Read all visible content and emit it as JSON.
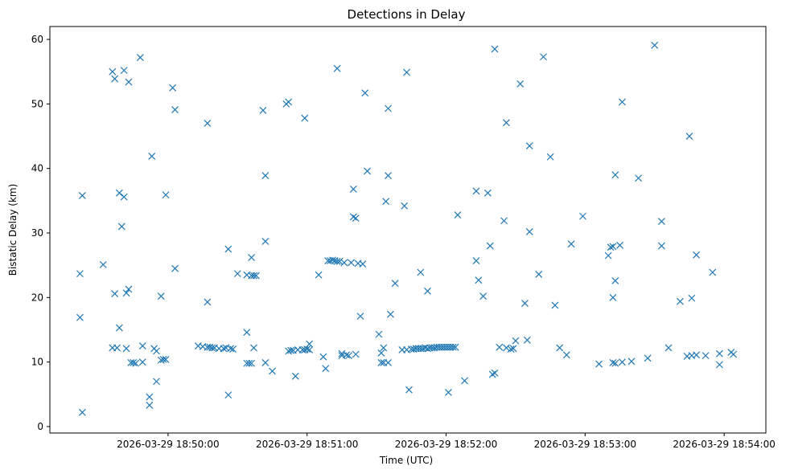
{
  "chart_data": {
    "type": "scatter",
    "title": "Detections in Delay",
    "xlabel": "Time (UTC)",
    "ylabel": "Bistatic Delay (km)",
    "x_is_time": true,
    "xlim": [
      "2026-03-29 18:49:09",
      "2026-03-29 18:54:18"
    ],
    "ylim": [
      -1,
      62
    ],
    "x_ticks": [
      "2026-03-29 18:50:00",
      "2026-03-29 18:51:00",
      "2026-03-29 18:52:00",
      "2026-03-29 18:53:00",
      "2026-03-29 18:54:00"
    ],
    "y_ticks": [
      0,
      10,
      20,
      30,
      40,
      50,
      60
    ],
    "marker": "x",
    "color": "#1f77b4",
    "grid": false,
    "points": [
      [
        "2026-03-29 18:49:22",
        23.7
      ],
      [
        "2026-03-29 18:49:22",
        16.9
      ],
      [
        "2026-03-29 18:49:23",
        35.8
      ],
      [
        "2026-03-29 18:49:23",
        2.2
      ],
      [
        "2026-03-29 18:49:32",
        25.1
      ],
      [
        "2026-03-29 18:49:36",
        55.0
      ],
      [
        "2026-03-29 18:49:37",
        53.9
      ],
      [
        "2026-03-29 18:49:37",
        20.6
      ],
      [
        "2026-03-29 18:49:36",
        12.2
      ],
      [
        "2026-03-29 18:49:38",
        12.2
      ],
      [
        "2026-03-29 18:49:39",
        36.2
      ],
      [
        "2026-03-29 18:49:39",
        15.3
      ],
      [
        "2026-03-29 18:49:40",
        31.0
      ],
      [
        "2026-03-29 18:49:41",
        35.6
      ],
      [
        "2026-03-29 18:49:41",
        55.2
      ],
      [
        "2026-03-29 18:49:42",
        20.7
      ],
      [
        "2026-03-29 18:49:42",
        12.1
      ],
      [
        "2026-03-29 18:49:43",
        53.4
      ],
      [
        "2026-03-29 18:49:43",
        21.3
      ],
      [
        "2026-03-29 18:49:44",
        9.9
      ],
      [
        "2026-03-29 18:49:45",
        9.9
      ],
      [
        "2026-03-29 18:49:46",
        9.8
      ],
      [
        "2026-03-29 18:49:48",
        57.2
      ],
      [
        "2026-03-29 18:49:49",
        12.5
      ],
      [
        "2026-03-29 18:49:49",
        10.0
      ],
      [
        "2026-03-29 18:49:52",
        4.6
      ],
      [
        "2026-03-29 18:49:52",
        3.3
      ],
      [
        "2026-03-29 18:49:53",
        41.9
      ],
      [
        "2026-03-29 18:49:54",
        12.1
      ],
      [
        "2026-03-29 18:49:55",
        11.7
      ],
      [
        "2026-03-29 18:49:55",
        7.0
      ],
      [
        "2026-03-29 18:49:57",
        20.2
      ],
      [
        "2026-03-29 18:49:57",
        10.3
      ],
      [
        "2026-03-29 18:49:58",
        10.4
      ],
      [
        "2026-03-29 18:49:59",
        10.4
      ],
      [
        "2026-03-29 18:49:59",
        35.9
      ],
      [
        "2026-03-29 18:50:02",
        52.5
      ],
      [
        "2026-03-29 18:50:03",
        49.1
      ],
      [
        "2026-03-29 18:50:03",
        24.5
      ],
      [
        "2026-03-29 18:50:13",
        12.5
      ],
      [
        "2026-03-29 18:50:15",
        12.4
      ],
      [
        "2026-03-29 18:50:17",
        47.0
      ],
      [
        "2026-03-29 18:50:17",
        19.3
      ],
      [
        "2026-03-29 18:50:17",
        12.3
      ],
      [
        "2026-03-29 18:50:18",
        12.3
      ],
      [
        "2026-03-29 18:50:19",
        12.2
      ],
      [
        "2026-03-29 18:50:20",
        12.2
      ],
      [
        "2026-03-29 18:50:22",
        12.1
      ],
      [
        "2026-03-29 18:50:24",
        12.1
      ],
      [
        "2026-03-29 18:50:25",
        12.2
      ],
      [
        "2026-03-29 18:50:26",
        27.5
      ],
      [
        "2026-03-29 18:50:26",
        4.9
      ],
      [
        "2026-03-29 18:50:27",
        12.1
      ],
      [
        "2026-03-29 18:50:28",
        12.0
      ],
      [
        "2026-03-29 18:50:30",
        23.7
      ],
      [
        "2026-03-29 18:50:34",
        23.5
      ],
      [
        "2026-03-29 18:50:34",
        14.6
      ],
      [
        "2026-03-29 18:50:34",
        9.8
      ],
      [
        "2026-03-29 18:50:35",
        9.8
      ],
      [
        "2026-03-29 18:50:36",
        9.8
      ],
      [
        "2026-03-29 18:50:36",
        23.4
      ],
      [
        "2026-03-29 18:50:36",
        26.2
      ],
      [
        "2026-03-29 18:50:37",
        12.2
      ],
      [
        "2026-03-29 18:50:37",
        23.4
      ],
      [
        "2026-03-29 18:50:38",
        23.4
      ],
      [
        "2026-03-29 18:50:41",
        49.0
      ],
      [
        "2026-03-29 18:50:42",
        38.9
      ],
      [
        "2026-03-29 18:50:42",
        28.7
      ],
      [
        "2026-03-29 18:50:42",
        9.9
      ],
      [
        "2026-03-29 18:50:45",
        8.6
      ],
      [
        "2026-03-29 18:50:51",
        50.0
      ],
      [
        "2026-03-29 18:50:52",
        50.3
      ],
      [
        "2026-03-29 18:50:52",
        11.7
      ],
      [
        "2026-03-29 18:50:53",
        11.8
      ],
      [
        "2026-03-29 18:50:54",
        11.8
      ],
      [
        "2026-03-29 18:50:55",
        7.8
      ],
      [
        "2026-03-29 18:50:56",
        11.9
      ],
      [
        "2026-03-29 18:50:58",
        11.9
      ],
      [
        "2026-03-29 18:50:59",
        47.8
      ],
      [
        "2026-03-29 18:50:59",
        11.9
      ],
      [
        "2026-03-29 18:51:00",
        12.0
      ],
      [
        "2026-03-29 18:51:01",
        11.9
      ],
      [
        "2026-03-29 18:51:01",
        12.8
      ],
      [
        "2026-03-29 18:51:05",
        23.5
      ],
      [
        "2026-03-29 18:51:07",
        10.8
      ],
      [
        "2026-03-29 18:51:08",
        9.0
      ],
      [
        "2026-03-29 18:51:09",
        25.7
      ],
      [
        "2026-03-29 18:51:10",
        25.7
      ],
      [
        "2026-03-29 18:51:11",
        25.8
      ],
      [
        "2026-03-29 18:51:12",
        25.7
      ],
      [
        "2026-03-29 18:51:13",
        55.5
      ],
      [
        "2026-03-29 18:51:13",
        25.6
      ],
      [
        "2026-03-29 18:51:14",
        25.6
      ],
      [
        "2026-03-29 18:51:15",
        11.0
      ],
      [
        "2026-03-29 18:51:15",
        11.3
      ],
      [
        "2026-03-29 18:51:16",
        25.4
      ],
      [
        "2026-03-29 18:51:17",
        11.1
      ],
      [
        "2026-03-29 18:51:18",
        11.0
      ],
      [
        "2026-03-29 18:51:19",
        25.4
      ],
      [
        "2026-03-29 18:51:20",
        36.8
      ],
      [
        "2026-03-29 18:51:20",
        32.5
      ],
      [
        "2026-03-29 18:51:21",
        32.3
      ],
      [
        "2026-03-29 18:51:21",
        11.2
      ],
      [
        "2026-03-29 18:51:22",
        25.3
      ],
      [
        "2026-03-29 18:51:23",
        17.1
      ],
      [
        "2026-03-29 18:51:24",
        25.2
      ],
      [
        "2026-03-29 18:51:25",
        51.7
      ],
      [
        "2026-03-29 18:51:26",
        39.6
      ],
      [
        "2026-03-29 18:51:31",
        14.3
      ],
      [
        "2026-03-29 18:51:32",
        11.4
      ],
      [
        "2026-03-29 18:51:32",
        9.9
      ],
      [
        "2026-03-29 18:51:33",
        12.2
      ],
      [
        "2026-03-29 18:51:33",
        9.9
      ],
      [
        "2026-03-29 18:51:34",
        34.9
      ],
      [
        "2026-03-29 18:51:35",
        9.9
      ],
      [
        "2026-03-29 18:51:35",
        49.3
      ],
      [
        "2026-03-29 18:51:35",
        38.9
      ],
      [
        "2026-03-29 18:51:36",
        17.4
      ],
      [
        "2026-03-29 18:51:38",
        22.2
      ],
      [
        "2026-03-29 18:51:41",
        11.9
      ],
      [
        "2026-03-29 18:51:42",
        34.2
      ],
      [
        "2026-03-29 18:51:43",
        11.9
      ],
      [
        "2026-03-29 18:51:43",
        54.9
      ],
      [
        "2026-03-29 18:51:44",
        5.7
      ],
      [
        "2026-03-29 18:51:45",
        12.0
      ],
      [
        "2026-03-29 18:51:46",
        12.0
      ],
      [
        "2026-03-29 18:51:47",
        12.1
      ],
      [
        "2026-03-29 18:51:48",
        12.1
      ],
      [
        "2026-03-29 18:51:49",
        12.1
      ],
      [
        "2026-03-29 18:51:49",
        23.9
      ],
      [
        "2026-03-29 18:51:50",
        12.1
      ],
      [
        "2026-03-29 18:51:51",
        12.2
      ],
      [
        "2026-03-29 18:51:52",
        12.1
      ],
      [
        "2026-03-29 18:51:52",
        21.0
      ],
      [
        "2026-03-29 18:51:53",
        12.2
      ],
      [
        "2026-03-29 18:51:54",
        12.2
      ],
      [
        "2026-03-29 18:51:55",
        12.2
      ],
      [
        "2026-03-29 18:51:56",
        12.3
      ],
      [
        "2026-03-29 18:51:57",
        12.3
      ],
      [
        "2026-03-29 18:51:58",
        12.3
      ],
      [
        "2026-03-29 18:51:59",
        12.3
      ],
      [
        "2026-03-29 18:52:00",
        12.3
      ],
      [
        "2026-03-29 18:52:01",
        5.3
      ],
      [
        "2026-03-29 18:52:01",
        12.3
      ],
      [
        "2026-03-29 18:52:02",
        12.3
      ],
      [
        "2026-03-29 18:52:03",
        12.3
      ],
      [
        "2026-03-29 18:52:04",
        12.3
      ],
      [
        "2026-03-29 18:52:05",
        32.8
      ],
      [
        "2026-03-29 18:52:08",
        7.1
      ],
      [
        "2026-03-29 18:52:13",
        36.5
      ],
      [
        "2026-03-29 18:52:13",
        25.7
      ],
      [
        "2026-03-29 18:52:14",
        22.7
      ],
      [
        "2026-03-29 18:52:16",
        20.2
      ],
      [
        "2026-03-29 18:52:18",
        36.2
      ],
      [
        "2026-03-29 18:52:19",
        28.0
      ],
      [
        "2026-03-29 18:52:20",
        8.1
      ],
      [
        "2026-03-29 18:52:21",
        8.3
      ],
      [
        "2026-03-29 18:52:21",
        58.5
      ],
      [
        "2026-03-29 18:52:23",
        12.3
      ],
      [
        "2026-03-29 18:52:25",
        31.9
      ],
      [
        "2026-03-29 18:52:26",
        47.1
      ],
      [
        "2026-03-29 18:52:26",
        12.2
      ],
      [
        "2026-03-29 18:52:28",
        12.0
      ],
      [
        "2026-03-29 18:52:29",
        12.1
      ],
      [
        "2026-03-29 18:52:30",
        13.3
      ],
      [
        "2026-03-29 18:52:32",
        53.1
      ],
      [
        "2026-03-29 18:52:34",
        19.1
      ],
      [
        "2026-03-29 18:52:35",
        13.4
      ],
      [
        "2026-03-29 18:52:36",
        43.5
      ],
      [
        "2026-03-29 18:52:36",
        30.2
      ],
      [
        "2026-03-29 18:52:40",
        23.6
      ],
      [
        "2026-03-29 18:52:42",
        57.3
      ],
      [
        "2026-03-29 18:52:45",
        41.8
      ],
      [
        "2026-03-29 18:52:47",
        18.8
      ],
      [
        "2026-03-29 18:52:49",
        12.2
      ],
      [
        "2026-03-29 18:52:52",
        11.1
      ],
      [
        "2026-03-29 18:52:54",
        28.3
      ],
      [
        "2026-03-29 18:52:59",
        32.6
      ],
      [
        "2026-03-29 18:53:06",
        9.7
      ],
      [
        "2026-03-29 18:53:10",
        26.5
      ],
      [
        "2026-03-29 18:53:11",
        27.8
      ],
      [
        "2026-03-29 18:53:12",
        20.0
      ],
      [
        "2026-03-29 18:53:12",
        27.9
      ],
      [
        "2026-03-29 18:53:12",
        9.9
      ],
      [
        "2026-03-29 18:53:13",
        22.6
      ],
      [
        "2026-03-29 18:53:13",
        9.8
      ],
      [
        "2026-03-29 18:53:13",
        39.0
      ],
      [
        "2026-03-29 18:53:15",
        28.1
      ],
      [
        "2026-03-29 18:53:16",
        50.3
      ],
      [
        "2026-03-29 18:53:16",
        10.0
      ],
      [
        "2026-03-29 18:53:20",
        10.1
      ],
      [
        "2026-03-29 18:53:23",
        38.5
      ],
      [
        "2026-03-29 18:53:27",
        10.6
      ],
      [
        "2026-03-29 18:53:30",
        59.1
      ],
      [
        "2026-03-29 18:53:33",
        31.8
      ],
      [
        "2026-03-29 18:53:33",
        28.0
      ],
      [
        "2026-03-29 18:53:36",
        12.2
      ],
      [
        "2026-03-29 18:53:41",
        19.4
      ],
      [
        "2026-03-29 18:53:44",
        10.9
      ],
      [
        "2026-03-29 18:53:45",
        45.0
      ],
      [
        "2026-03-29 18:53:46",
        11.0
      ],
      [
        "2026-03-29 18:53:46",
        19.9
      ],
      [
        "2026-03-29 18:53:48",
        11.1
      ],
      [
        "2026-03-29 18:53:48",
        26.6
      ],
      [
        "2026-03-29 18:53:52",
        11.0
      ],
      [
        "2026-03-29 18:53:55",
        23.9
      ],
      [
        "2026-03-29 18:53:58",
        11.3
      ],
      [
        "2026-03-29 18:53:58",
        9.6
      ],
      [
        "2026-03-29 18:54:03",
        11.5
      ],
      [
        "2026-03-29 18:54:04",
        11.2
      ]
    ]
  }
}
